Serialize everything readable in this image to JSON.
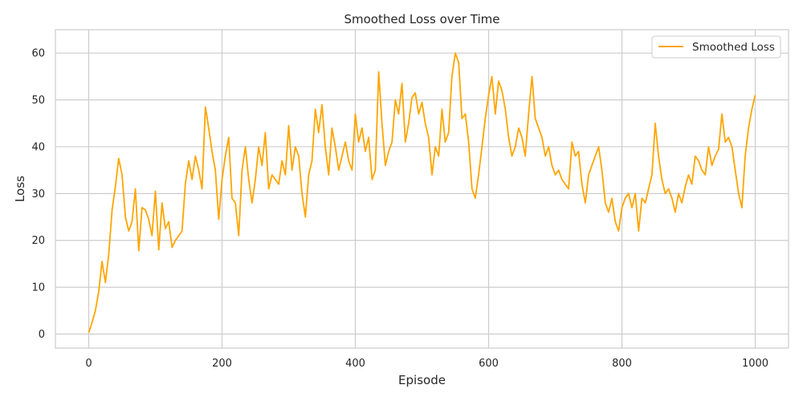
{
  "chart_data": {
    "type": "line",
    "title": "Smoothed Loss over Time",
    "xlabel": "Episode",
    "ylabel": "Loss",
    "xlim": [
      -50,
      1050
    ],
    "ylim": [
      -3,
      65
    ],
    "xticks": [
      0,
      200,
      400,
      600,
      800,
      1000
    ],
    "yticks": [
      0,
      10,
      20,
      30,
      40,
      50,
      60
    ],
    "grid": true,
    "legend_position": "top-right",
    "series": [
      {
        "name": "Smoothed Loss",
        "color": "#ffa500",
        "x": [
          0,
          5,
          10,
          15,
          20,
          25,
          30,
          35,
          40,
          45,
          50,
          55,
          60,
          65,
          70,
          75,
          80,
          85,
          90,
          95,
          100,
          105,
          110,
          115,
          120,
          125,
          130,
          135,
          140,
          145,
          150,
          155,
          160,
          165,
          170,
          175,
          180,
          185,
          190,
          195,
          200,
          205,
          210,
          215,
          220,
          225,
          230,
          235,
          240,
          245,
          250,
          255,
          260,
          265,
          270,
          275,
          280,
          285,
          290,
          295,
          300,
          305,
          310,
          315,
          320,
          325,
          330,
          335,
          340,
          345,
          350,
          355,
          360,
          365,
          370,
          375,
          380,
          385,
          390,
          395,
          400,
          405,
          410,
          415,
          420,
          425,
          430,
          435,
          440,
          445,
          450,
          455,
          460,
          465,
          470,
          475,
          480,
          485,
          490,
          495,
          500,
          505,
          510,
          515,
          520,
          525,
          530,
          535,
          540,
          545,
          550,
          555,
          560,
          565,
          570,
          575,
          580,
          585,
          590,
          595,
          600,
          605,
          610,
          615,
          620,
          625,
          630,
          635,
          640,
          645,
          650,
          655,
          660,
          665,
          670,
          675,
          680,
          685,
          690,
          695,
          700,
          705,
          710,
          715,
          720,
          725,
          730,
          735,
          740,
          745,
          750,
          755,
          760,
          765,
          770,
          775,
          780,
          785,
          790,
          795,
          800,
          805,
          810,
          815,
          820,
          825,
          830,
          835,
          840,
          845,
          850,
          855,
          860,
          865,
          870,
          875,
          880,
          885,
          890,
          895,
          900,
          905,
          910,
          915,
          920,
          925,
          930,
          935,
          940,
          945,
          950,
          955,
          960,
          965,
          970,
          975,
          980,
          985,
          990,
          995,
          1000
        ],
        "values": [
          0.3,
          2.5,
          5.0,
          9.0,
          15.5,
          11.0,
          17.0,
          26.5,
          31.5,
          37.5,
          34.0,
          25.0,
          22.0,
          24.0,
          31.0,
          17.8,
          27.0,
          26.5,
          24.5,
          21.0,
          30.5,
          18.0,
          28.0,
          22.5,
          24.0,
          18.5,
          20.0,
          21.0,
          22.0,
          32.0,
          37.0,
          33.0,
          38.0,
          35.0,
          31.0,
          48.5,
          44.0,
          39.0,
          35.0,
          24.5,
          33.0,
          38.0,
          42.0,
          29.0,
          28.0,
          21.0,
          35.0,
          40.0,
          33.0,
          28.0,
          33.0,
          40.0,
          36.0,
          43.0,
          31.0,
          34.0,
          33.0,
          32.0,
          37.0,
          34.0,
          44.5,
          35.0,
          40.0,
          38.0,
          30.0,
          25.0,
          34.0,
          37.0,
          48.0,
          43.0,
          49.0,
          40.0,
          34.0,
          44.0,
          40.0,
          35.0,
          38.0,
          41.0,
          37.0,
          35.0,
          47.0,
          41.0,
          44.0,
          39.0,
          42.0,
          33.0,
          35.0,
          56.0,
          45.0,
          36.0,
          39.0,
          41.0,
          50.0,
          47.0,
          53.5,
          41.0,
          45.0,
          50.5,
          51.5,
          47.0,
          49.5,
          45.0,
          42.0,
          34.0,
          40.0,
          38.0,
          48.0,
          41.0,
          43.0,
          55.0,
          60.0,
          58.0,
          46.0,
          47.0,
          41.0,
          31.0,
          29.0,
          34.0,
          40.0,
          46.0,
          51.0,
          55.0,
          47.0,
          54.0,
          52.0,
          48.0,
          42.0,
          38.0,
          40.0,
          44.0,
          42.0,
          38.0,
          47.0,
          55.0,
          46.0,
          44.0,
          42.0,
          38.0,
          40.0,
          36.0,
          34.0,
          35.0,
          33.0,
          32.0,
          31.0,
          41.0,
          38.0,
          39.0,
          32.0,
          28.0,
          34.0,
          36.0,
          38.0,
          40.0,
          35.0,
          28.0,
          26.0,
          29.0,
          24.0,
          22.0,
          27.0,
          29.0,
          30.0,
          27.0,
          30.0,
          22.0,
          29.0,
          28.0,
          31.0,
          34.0,
          45.0,
          38.0,
          33.0,
          30.0,
          31.0,
          29.0,
          26.0,
          30.0,
          28.0,
          31.5,
          34.0,
          32.0,
          38.0,
          37.0,
          35.0,
          34.0,
          40.0,
          36.0,
          38.0,
          39.5,
          47.0,
          41.0,
          42.0,
          40.0,
          35.0,
          30.0,
          27.0,
          38.0,
          44.0,
          48.0,
          51.0
        ]
      }
    ]
  }
}
